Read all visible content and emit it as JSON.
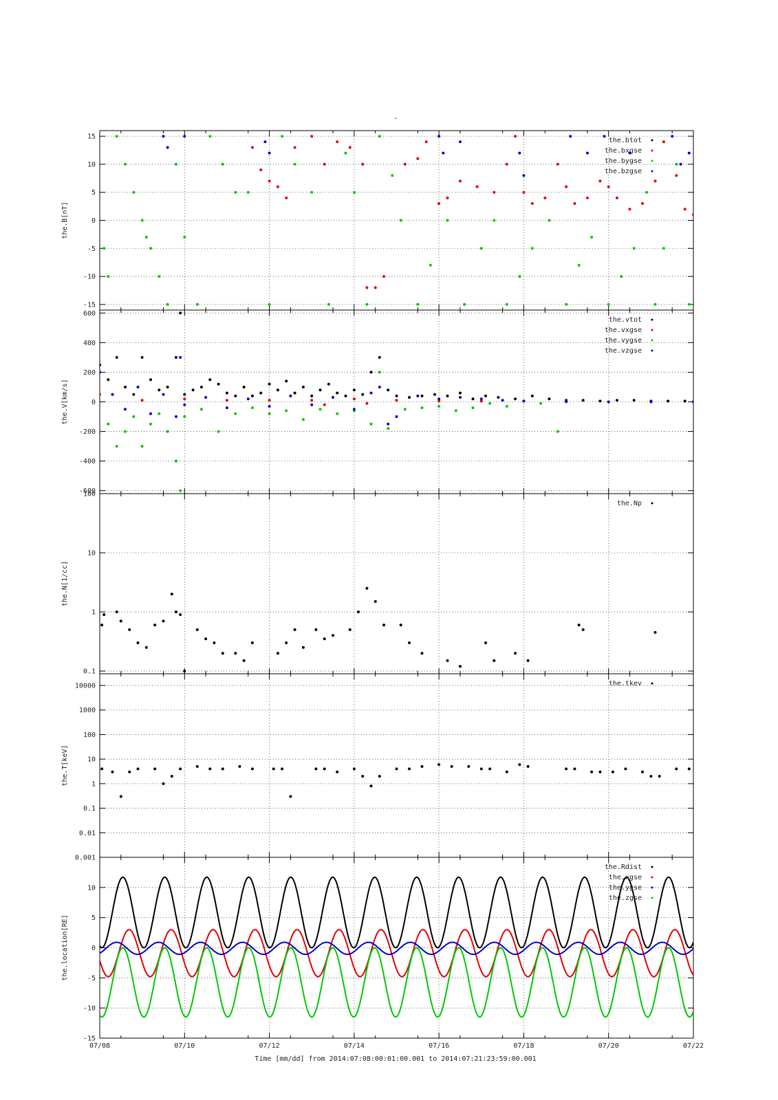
{
  "figure": {
    "title": "-",
    "footer": "Time [mm/dd]  from 2014:07:08:00:01:00.001  to  2014:07:21:23:59:00.001"
  },
  "colors": {
    "black": "#000000",
    "red": "#e00000",
    "green": "#00c800",
    "blue": "#0000d0",
    "grid": "#444444"
  },
  "chart_data": [
    {
      "type": "scatter",
      "id": "B",
      "ylabel": "the.B[nT]",
      "ylim": [
        -16,
        16
      ],
      "yscale": "linear",
      "yticks": [
        15,
        10,
        5,
        0,
        -5,
        -10,
        -15
      ],
      "xlim": [
        0,
        14
      ],
      "xticks": [
        0,
        2,
        4,
        6,
        8,
        10,
        12,
        14
      ],
      "xticklabels": [
        "07/08",
        "07/10",
        "07/12",
        "07/14",
        "07/16",
        "07/18",
        "07/20",
        "07/22"
      ],
      "legend": [
        "the.btot",
        "the.bxgse",
        "the.bygse",
        "the.bzgse"
      ],
      "grid": true,
      "series": [
        {
          "name": "the.btot",
          "color": "black",
          "x": [],
          "y": []
        },
        {
          "name": "the.bxgse",
          "color": "red",
          "x": [
            3.6,
            3.8,
            4.0,
            4.2,
            4.4,
            4.6,
            5.0,
            5.3,
            5.6,
            5.9,
            6.2,
            6.3,
            6.5,
            6.7,
            7.2,
            7.5,
            7.7,
            8.0,
            8.2,
            8.5,
            8.9,
            9.3,
            9.6,
            9.8,
            10.0,
            10.2,
            10.5,
            10.8,
            11.0,
            11.2,
            11.5,
            11.8,
            12.0,
            12.2,
            12.5,
            12.8,
            13.1,
            13.3,
            13.6,
            13.8,
            14.0
          ],
          "y": [
            13,
            9,
            7,
            6,
            4,
            13,
            15,
            10,
            14,
            13,
            10,
            -12,
            -12,
            -10,
            10,
            11,
            14,
            3,
            4,
            7,
            6,
            5,
            10,
            15,
            5,
            3,
            4,
            10,
            6,
            3,
            4,
            7,
            6,
            4,
            2,
            3,
            7,
            14,
            8,
            2,
            1
          ]
        },
        {
          "name": "the.bygse",
          "color": "green",
          "x": [
            0.1,
            0.2,
            0.4,
            0.6,
            0.8,
            1.0,
            1.1,
            1.2,
            1.4,
            1.6,
            1.8,
            2.0,
            2.3,
            2.6,
            2.9,
            3.2,
            3.5,
            4.0,
            4.3,
            4.6,
            5.0,
            5.4,
            5.8,
            6.0,
            6.3,
            6.6,
            6.9,
            7.1,
            7.5,
            7.8,
            8.2,
            8.6,
            9.0,
            9.3,
            9.6,
            9.9,
            10.2,
            10.6,
            11.0,
            11.3,
            11.6,
            12.0,
            12.3,
            12.6,
            12.9,
            13.1,
            13.3,
            13.6,
            13.9
          ],
          "y": [
            -5,
            -10,
            15,
            10,
            5,
            0,
            -3,
            -5,
            -10,
            -15,
            10,
            -3,
            -15,
            15,
            10,
            5,
            5,
            -15,
            15,
            10,
            5,
            -15,
            12,
            5,
            -15,
            15,
            8,
            0,
            -15,
            -8,
            0,
            -15,
            -5,
            0,
            -15,
            -10,
            -5,
            0,
            -15,
            -8,
            -3,
            -15,
            -10,
            -5,
            5,
            -15,
            -5,
            10,
            -15
          ]
        },
        {
          "name": "the.bzgse",
          "color": "blue",
          "x": [
            1.5,
            1.6,
            2.0,
            3.9,
            4.0,
            8.0,
            8.1,
            8.5,
            9.9,
            10.0,
            11.1,
            11.5,
            11.9,
            12.5,
            13.5,
            13.7,
            13.9
          ],
          "y": [
            15,
            13,
            15,
            14,
            12,
            15,
            12,
            14,
            12,
            8,
            15,
            12,
            15,
            12,
            15,
            10,
            12
          ]
        }
      ]
    },
    {
      "type": "scatter",
      "id": "V",
      "ylabel": "the.V[km/s]",
      "ylim": [
        -620,
        620
      ],
      "yscale": "linear",
      "yticks": [
        600,
        400,
        200,
        0,
        -200,
        -400,
        -600
      ],
      "xlim": [
        0,
        14
      ],
      "legend": [
        "the.vtot",
        "the.vxgse",
        "the.vygse",
        "the.vzgse"
      ],
      "grid": true,
      "series": [
        {
          "name": "the.vtot",
          "color": "black",
          "x": [
            0.0,
            0.2,
            0.4,
            0.6,
            0.8,
            1.0,
            1.2,
            1.4,
            1.6,
            1.8,
            1.9,
            2.0,
            2.2,
            2.4,
            2.6,
            2.8,
            3.0,
            3.2,
            3.4,
            3.6,
            3.8,
            4.0,
            4.2,
            4.4,
            4.6,
            4.8,
            5.0,
            5.2,
            5.4,
            5.6,
            5.8,
            6.0,
            6.2,
            6.4,
            6.6,
            6.8,
            7.0,
            7.3,
            7.6,
            7.9,
            8.2,
            8.5,
            8.8,
            9.1,
            9.4,
            9.8,
            10.2,
            10.6,
            11.0,
            11.4,
            11.8,
            12.2,
            12.6,
            13.0,
            13.4,
            13.8
          ],
          "y": [
            250,
            150,
            300,
            100,
            50,
            300,
            150,
            80,
            100,
            300,
            600,
            50,
            80,
            100,
            150,
            120,
            60,
            40,
            100,
            40,
            60,
            120,
            80,
            140,
            60,
            100,
            40,
            80,
            120,
            60,
            40,
            80,
            50,
            200,
            300,
            80,
            40,
            30,
            40,
            50,
            40,
            60,
            20,
            40,
            30,
            20,
            40,
            20,
            10,
            10,
            5,
            10,
            10,
            5,
            5,
            5
          ]
        },
        {
          "name": "the.vxgse",
          "color": "red",
          "x": [
            0.0,
            1.0,
            2.0,
            3.0,
            4.0,
            5.0,
            5.3,
            6.0,
            6.3,
            7.0,
            8.0,
            9.0,
            10.0,
            11.0,
            12.0,
            13.0,
            14.0
          ],
          "y": [
            50,
            10,
            20,
            10,
            10,
            10,
            -20,
            20,
            -10,
            10,
            5,
            5,
            5,
            0,
            0,
            0,
            0
          ]
        },
        {
          "name": "the.vygse",
          "color": "green",
          "x": [
            0.0,
            0.2,
            0.4,
            0.6,
            0.8,
            1.0,
            1.2,
            1.4,
            1.6,
            1.8,
            1.9,
            2.0,
            2.4,
            2.8,
            3.2,
            3.6,
            4.0,
            4.4,
            4.8,
            5.2,
            5.6,
            6.0,
            6.4,
            6.6,
            6.8,
            7.2,
            7.6,
            8.0,
            8.4,
            8.8,
            9.2,
            9.6,
            10.4,
            10.8
          ],
          "y": [
            -200,
            -150,
            -300,
            -200,
            -100,
            -300,
            -150,
            -80,
            -200,
            -400,
            -600,
            -100,
            -50,
            -200,
            -80,
            -40,
            -80,
            -60,
            -120,
            -50,
            -80,
            -60,
            -150,
            200,
            -180,
            -50,
            -40,
            -30,
            -60,
            -40,
            -10,
            -30,
            -10,
            -200
          ]
        },
        {
          "name": "the.vzgse",
          "color": "blue",
          "x": [
            0.0,
            0.3,
            0.6,
            0.9,
            1.2,
            1.5,
            1.8,
            1.9,
            2.0,
            2.5,
            3.0,
            3.5,
            4.0,
            4.5,
            5.0,
            5.5,
            6.0,
            6.4,
            6.6,
            6.8,
            7.0,
            7.5,
            8.0,
            8.5,
            9.0,
            9.5,
            10.0,
            11.0,
            12.0,
            13.0,
            14.0
          ],
          "y": [
            200,
            50,
            -50,
            100,
            -80,
            50,
            -100,
            300,
            -20,
            30,
            -40,
            20,
            -30,
            40,
            -20,
            30,
            -50,
            60,
            100,
            -150,
            -100,
            40,
            20,
            30,
            20,
            10,
            5,
            5,
            0,
            0,
            0
          ]
        }
      ]
    },
    {
      "type": "scatter",
      "id": "N",
      "ylabel": "the.N[1/cc]",
      "ylim": [
        0.09,
        100
      ],
      "yscale": "log",
      "yticks": [
        100,
        10,
        1,
        0.1
      ],
      "xlim": [
        0,
        14
      ],
      "legend": [
        "the.Np"
      ],
      "grid": true,
      "series": [
        {
          "name": "the.Np",
          "color": "black",
          "x": [
            0.05,
            0.1,
            0.4,
            0.5,
            0.7,
            0.9,
            1.1,
            1.3,
            1.5,
            1.7,
            1.8,
            1.9,
            2.0,
            2.3,
            2.5,
            2.7,
            2.9,
            3.2,
            3.4,
            3.6,
            4.2,
            4.4,
            4.6,
            4.8,
            5.1,
            5.3,
            5.5,
            5.9,
            6.1,
            6.3,
            6.5,
            6.7,
            7.1,
            7.3,
            7.6,
            8.2,
            8.5,
            9.1,
            9.3,
            9.8,
            10.1,
            11.3,
            11.4,
            13.1
          ],
          "y": [
            0.6,
            0.9,
            1.0,
            0.7,
            0.5,
            0.3,
            0.25,
            0.6,
            0.7,
            2.0,
            1.0,
            0.9,
            0.1,
            0.5,
            0.35,
            0.3,
            0.2,
            0.2,
            0.15,
            0.3,
            0.2,
            0.3,
            0.5,
            0.25,
            0.5,
            0.35,
            0.4,
            0.5,
            1.0,
            2.5,
            1.5,
            0.6,
            0.6,
            0.3,
            0.2,
            0.15,
            0.12,
            0.3,
            0.15,
            0.2,
            0.15,
            0.6,
            0.5,
            0.45
          ]
        }
      ]
    },
    {
      "type": "scatter",
      "id": "T",
      "ylabel": "the.T[keV]",
      "ylim": [
        0.001,
        30000
      ],
      "yscale": "log",
      "yticks": [
        10000,
        1000,
        100,
        10,
        1,
        0.1,
        0.01,
        0.001
      ],
      "yticklabels": [
        "10000",
        "1000",
        "100",
        "10",
        "1",
        "0.1",
        "0.01",
        "0.001"
      ],
      "xlim": [
        0,
        14
      ],
      "legend": [
        "the.tkev"
      ],
      "grid": true,
      "series": [
        {
          "name": "the.tkev",
          "color": "black",
          "x": [
            0.05,
            0.3,
            0.5,
            0.7,
            0.9,
            1.3,
            1.5,
            1.7,
            1.9,
            2.3,
            2.6,
            2.9,
            3.3,
            3.6,
            4.1,
            4.3,
            4.5,
            5.1,
            5.3,
            5.6,
            6.0,
            6.2,
            6.4,
            6.6,
            7.0,
            7.3,
            7.6,
            8.0,
            8.3,
            8.7,
            9.0,
            9.2,
            9.6,
            9.9,
            10.1,
            11.0,
            11.2,
            11.6,
            11.8,
            12.1,
            12.4,
            12.8,
            13.0,
            13.2,
            13.6,
            13.9
          ],
          "y": [
            4,
            3,
            0.3,
            3,
            4,
            4,
            1,
            2,
            4,
            5,
            4,
            4,
            5,
            4,
            4,
            4,
            0.3,
            4,
            4,
            3,
            4,
            2,
            0.8,
            2,
            4,
            4,
            5,
            6,
            5,
            5,
            4,
            4,
            3,
            6,
            5,
            4,
            4,
            3,
            3,
            3,
            4,
            3,
            2,
            2,
            4,
            4
          ]
        }
      ]
    },
    {
      "type": "line",
      "id": "location",
      "ylabel": "the.location[RE]",
      "ylim": [
        -15,
        15
      ],
      "yscale": "linear",
      "yticks": [
        10,
        5,
        0,
        -5,
        -10,
        -15
      ],
      "xlim": [
        0,
        14
      ],
      "legend": [
        "the.Rdist",
        "the.xgse",
        "the.ygse",
        "the.zgse"
      ],
      "grid": true,
      "series": [
        {
          "name": "the.Rdist",
          "color": "black",
          "min": 0,
          "max": 11.7,
          "period": 0.99,
          "phase": 0.45
        },
        {
          "name": "the.xgse",
          "color": "red",
          "min": -4.8,
          "max": 3.0,
          "period": 0.99,
          "phase": 0.3
        },
        {
          "name": "the.ygse",
          "color": "blue",
          "min": -1.1,
          "max": 0.9,
          "period": 0.99,
          "phase": 0.6
        },
        {
          "name": "the.zgse",
          "color": "green",
          "min": -11.5,
          "max": 0,
          "period": 0.99,
          "phase": 0.45
        }
      ]
    }
  ]
}
